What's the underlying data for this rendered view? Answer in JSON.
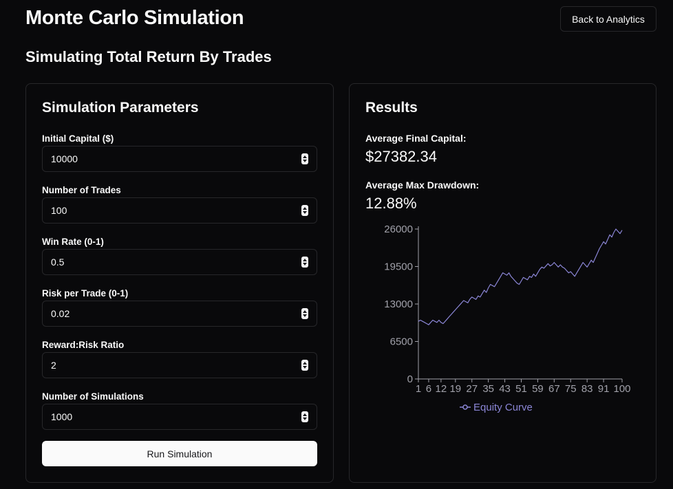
{
  "header": {
    "title": "Monte Carlo Simulation",
    "back_button": "Back to Analytics",
    "subtitle": "Simulating Total Return By Trades"
  },
  "parameters": {
    "title": "Simulation Parameters",
    "fields": [
      {
        "label": "Initial Capital ($)",
        "value": "10000"
      },
      {
        "label": "Number of Trades",
        "value": "100"
      },
      {
        "label": "Win Rate (0-1)",
        "value": "0.5"
      },
      {
        "label": "Risk per Trade (0-1)",
        "value": "0.02"
      },
      {
        "label": "Reward:Risk Ratio",
        "value": "2"
      },
      {
        "label": "Number of Simulations",
        "value": "1000"
      }
    ],
    "run_button": "Run Simulation"
  },
  "results": {
    "title": "Results",
    "avg_final_capital_label": "Average Final Capital:",
    "avg_final_capital_value": "$27382.34",
    "avg_max_drawdown_label": "Average Max Drawdown:",
    "avg_max_drawdown_value": "12.88%"
  },
  "colors": {
    "background": "#09090b",
    "border": "#27272a",
    "line": "#8b86d6",
    "axis": "#a1a1aa"
  },
  "chart_data": {
    "type": "line",
    "series": [
      {
        "name": "Equity Curve"
      }
    ],
    "x_ticks": [
      "1",
      "6",
      "12",
      "19",
      "27",
      "35",
      "43",
      "51",
      "59",
      "67",
      "75",
      "83",
      "91",
      "100"
    ],
    "y_ticks": [
      "0",
      "6500",
      "13000",
      "19500",
      "26000"
    ],
    "xlim": [
      1,
      100
    ],
    "ylim": [
      0,
      26000
    ],
    "x": [
      1,
      2,
      3,
      4,
      5,
      6,
      7,
      8,
      9,
      10,
      11,
      12,
      13,
      14,
      15,
      16,
      17,
      18,
      19,
      20,
      21,
      22,
      23,
      24,
      25,
      26,
      27,
      28,
      29,
      30,
      31,
      32,
      33,
      34,
      35,
      36,
      37,
      38,
      39,
      40,
      41,
      42,
      43,
      44,
      45,
      46,
      47,
      48,
      49,
      50,
      51,
      52,
      53,
      54,
      55,
      56,
      57,
      58,
      59,
      60,
      61,
      62,
      63,
      64,
      65,
      66,
      67,
      68,
      69,
      70,
      71,
      72,
      73,
      74,
      75,
      76,
      77,
      78,
      79,
      80,
      81,
      82,
      83,
      84,
      85,
      86,
      87,
      88,
      89,
      90,
      91,
      92,
      93,
      94,
      95,
      96,
      97,
      98,
      99,
      100
    ],
    "y": [
      10000,
      10200,
      10000,
      9800,
      9600,
      9400,
      9800,
      10200,
      10000,
      9800,
      10200,
      9800,
      9600,
      10000,
      10400,
      10800,
      11200,
      11600,
      12000,
      12400,
      12800,
      13200,
      13600,
      13400,
      13200,
      13800,
      14200,
      14000,
      13800,
      14400,
      14200,
      14800,
      15400,
      15000,
      15800,
      16400,
      16200,
      16000,
      16600,
      17200,
      17800,
      18400,
      18200,
      18000,
      18400,
      17800,
      17400,
      17000,
      16600,
      16400,
      17000,
      17600,
      17400,
      17200,
      17800,
      17600,
      18200,
      17800,
      18400,
      19000,
      19400,
      19200,
      19600,
      20000,
      19600,
      19800,
      20200,
      19800,
      19400,
      19800,
      19400,
      19200,
      18800,
      18400,
      18600,
      18200,
      17800,
      18400,
      19000,
      19600,
      20200,
      19800,
      19400,
      20000,
      20600,
      20200,
      21000,
      21800,
      22600,
      23200,
      23800,
      23400,
      24200,
      25000,
      24600,
      25400,
      26000,
      25600,
      25200,
      25800
    ]
  }
}
